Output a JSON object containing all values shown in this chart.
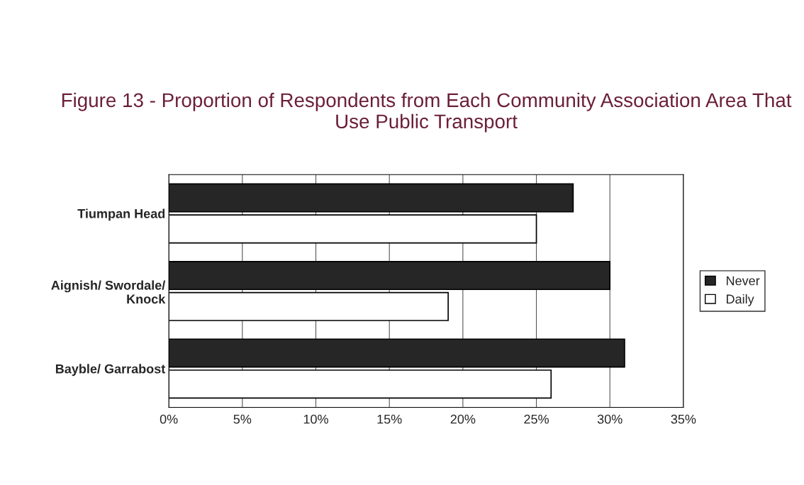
{
  "chart_data": {
    "type": "bar",
    "orientation": "horizontal",
    "title": "Figure 13 - Proportion of Respondents from Each Community Association Area That Use Public Transport",
    "categories": [
      "Tiumpan Head",
      "Aignish/ Swordale/\nKnock",
      "Bayble/ Garrabost"
    ],
    "series": [
      {
        "name": "Never",
        "color": "#262626",
        "values": [
          27.5,
          30,
          31
        ]
      },
      {
        "name": "Daily",
        "color": "#ffffff",
        "values": [
          25,
          19,
          26
        ]
      }
    ],
    "xlim": [
      0,
      35
    ],
    "xticks": [
      {
        "value": 0,
        "label": "0%"
      },
      {
        "value": 5,
        "label": "5%"
      },
      {
        "value": 10,
        "label": "10%"
      },
      {
        "value": 15,
        "label": "15%"
      },
      {
        "value": 20,
        "label": "20%"
      },
      {
        "value": 25,
        "label": "25%"
      },
      {
        "value": 30,
        "label": "30%"
      },
      {
        "value": 35,
        "label": "35%"
      }
    ],
    "grid": "x",
    "legend": "right"
  }
}
